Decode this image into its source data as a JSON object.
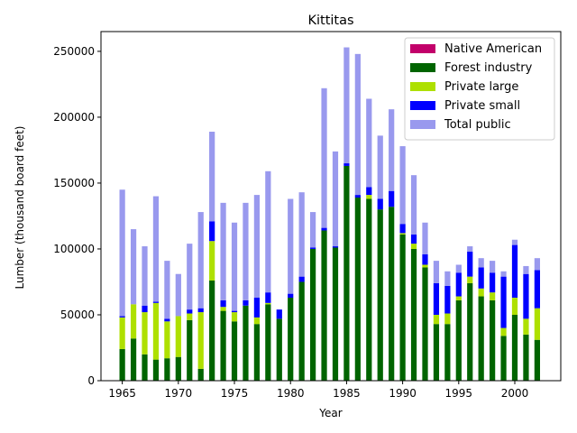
{
  "chart_data": {
    "type": "bar",
    "stacked": true,
    "title": "Kittitas",
    "xlabel": "Year",
    "ylabel": "Lumber (thousand board feet)",
    "ylim": [
      0,
      265000
    ],
    "xlim": [
      1963.1,
      2004.1
    ],
    "xticks": [
      1965,
      1970,
      1975,
      1980,
      1985,
      1990,
      1995,
      2000
    ],
    "yticks": [
      0,
      50000,
      100000,
      150000,
      200000,
      250000
    ],
    "grid": false,
    "legend_position": "top-right",
    "x": [
      1965,
      1966,
      1967,
      1968,
      1969,
      1970,
      1971,
      1972,
      1973,
      1974,
      1975,
      1976,
      1977,
      1978,
      1979,
      1980,
      1981,
      1982,
      1983,
      1984,
      1985,
      1986,
      1987,
      1988,
      1989,
      1990,
      1991,
      1992,
      1993,
      1994,
      1995,
      1996,
      1997,
      1998,
      1999,
      2000,
      2001,
      2002
    ],
    "series": [
      {
        "name": "Native American",
        "color": "#c2006a",
        "values": [
          0,
          0,
          0,
          0,
          0,
          0,
          0,
          0,
          0,
          0,
          0,
          0,
          0,
          0,
          0,
          0,
          0,
          0,
          0,
          0,
          0,
          0,
          0,
          0,
          0,
          0,
          0,
          0,
          0,
          0,
          0,
          0,
          0,
          0,
          0,
          0,
          0,
          0
        ]
      },
      {
        "name": "Forest industry",
        "color": "#006400",
        "values": [
          24000,
          32000,
          20000,
          16000,
          17000,
          18000,
          46000,
          9000,
          76000,
          53000,
          45000,
          57000,
          43000,
          58000,
          47000,
          63000,
          75000,
          100000,
          114000,
          101000,
          163000,
          139000,
          138000,
          130000,
          132000,
          111000,
          100000,
          86000,
          43000,
          43000,
          61000,
          74000,
          64000,
          61000,
          34000,
          50000,
          35000,
          31000
        ]
      },
      {
        "name": "Private large",
        "color": "#aee000",
        "values": [
          24000,
          26000,
          32000,
          43000,
          28000,
          31000,
          5000,
          43000,
          30000,
          3000,
          7000,
          0,
          5000,
          1000,
          0,
          0,
          0,
          0,
          0,
          0,
          0,
          0,
          3000,
          0,
          0,
          1000,
          4000,
          2000,
          7000,
          8000,
          3000,
          5000,
          6000,
          6000,
          6000,
          13000,
          12000,
          24000
        ]
      },
      {
        "name": "Private small",
        "color": "#0000ff",
        "values": [
          1000,
          0,
          5000,
          1000,
          2000,
          0,
          3000,
          3000,
          15000,
          5000,
          1000,
          4000,
          15000,
          8000,
          7000,
          3000,
          4000,
          1000,
          2000,
          1000,
          2000,
          2000,
          6000,
          8000,
          12000,
          7000,
          7000,
          8000,
          24000,
          21000,
          18000,
          19000,
          16000,
          15000,
          39000,
          40000,
          34000,
          29000
        ]
      },
      {
        "name": "Total public",
        "color": "#9999ee",
        "values": [
          96000,
          57000,
          45000,
          80000,
          44000,
          32000,
          50000,
          73000,
          68000,
          74000,
          67000,
          74000,
          78000,
          92000,
          0,
          72000,
          64000,
          27000,
          106000,
          72000,
          88000,
          107000,
          67000,
          48000,
          62000,
          59000,
          45000,
          24000,
          17000,
          11000,
          6000,
          4000,
          7000,
          9000,
          4000,
          4000,
          6000,
          9000
        ]
      }
    ]
  }
}
